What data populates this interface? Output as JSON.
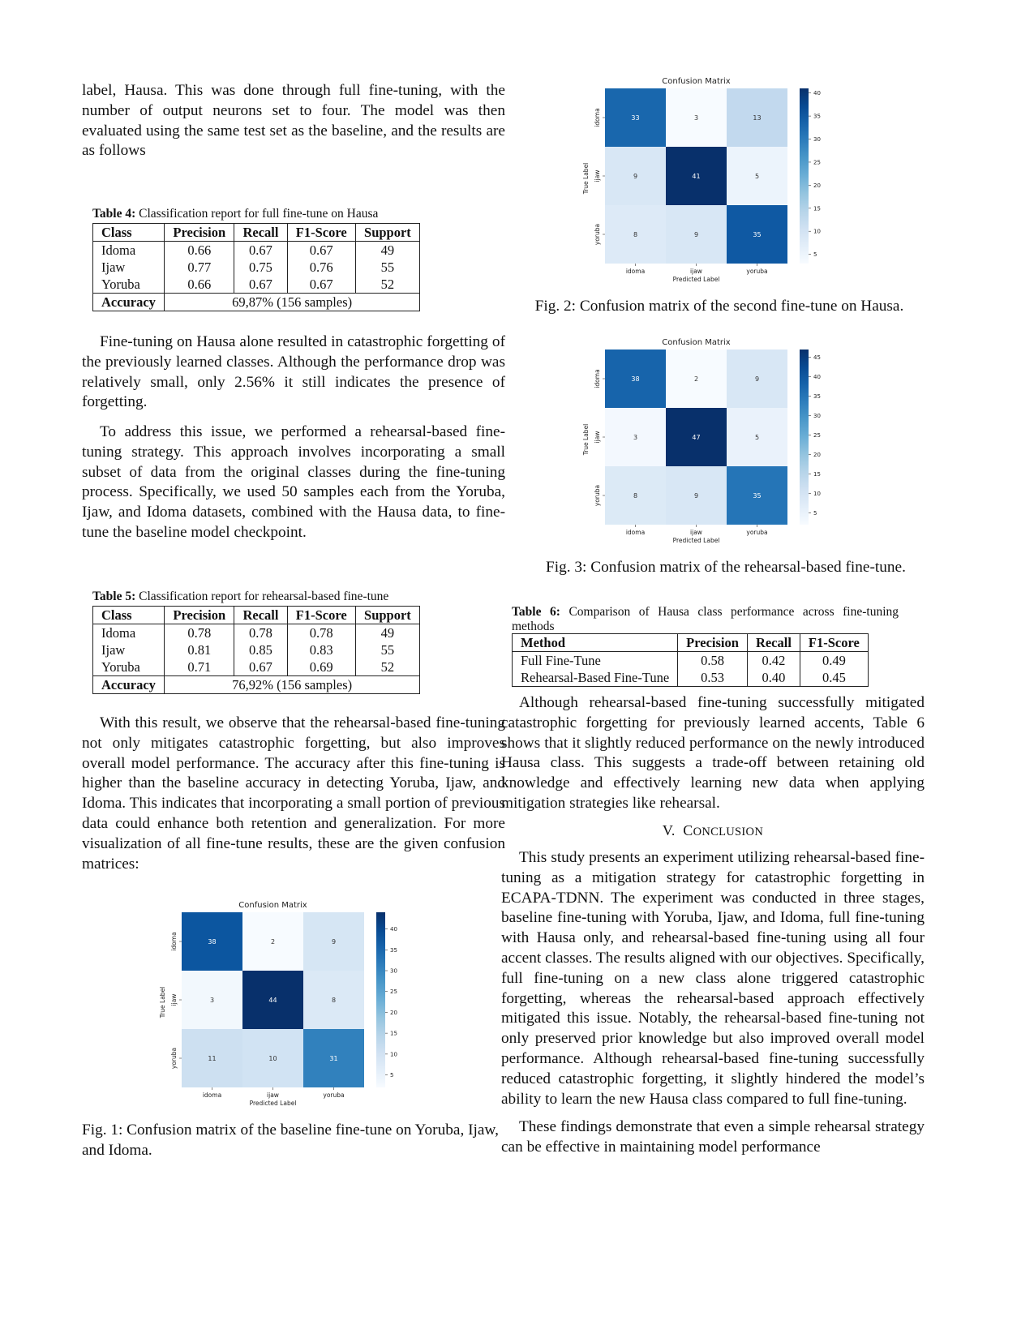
{
  "left": {
    "para1": "label, Hausa. This was done through full fine-tuning, with the number of output neurons set to four. The model was then evaluated using the same test set as the baseline, and the results are as follows",
    "table4": {
      "label": "Table 4:",
      "caption": "Classification report for full fine-tune on Hausa",
      "headers": [
        "Class",
        "Precision",
        "Recall",
        "F1-Score",
        "Support"
      ],
      "rows": [
        [
          "Idoma",
          "0.66",
          "0.67",
          "0.67",
          "49"
        ],
        [
          "Ijaw",
          "0.77",
          "0.75",
          "0.76",
          "55"
        ],
        [
          "Yoruba",
          "0.66",
          "0.67",
          "0.67",
          "52"
        ]
      ],
      "accuracy_label": "Accuracy",
      "accuracy_value": "69,87% (156 samples)"
    },
    "para2": "Fine-tuning on Hausa alone resulted in catastrophic forgetting of the previously learned classes. Although the performance drop was relatively small, only 2.56% it still indicates the presence of forgetting.",
    "para3": "To address this issue, we performed a rehearsal-based fine-tuning strategy. This approach involves incorporating a small subset of data from the original classes during the fine-tuning process. Specifically, we used 50 samples each from the Yoruba, Ijaw, and Idoma datasets, combined with the Hausa data, to fine-tune the baseline model checkpoint.",
    "table5": {
      "label": "Table 5:",
      "caption": "Classification report for rehearsal-based fine-tune",
      "headers": [
        "Class",
        "Precision",
        "Recall",
        "F1-Score",
        "Support"
      ],
      "rows": [
        [
          "Idoma",
          "0.78",
          "0.78",
          "0.78",
          "49"
        ],
        [
          "Ijaw",
          "0.81",
          "0.85",
          "0.83",
          "55"
        ],
        [
          "Yoruba",
          "0.71",
          "0.67",
          "0.69",
          "52"
        ]
      ],
      "accuracy_label": "Accuracy",
      "accuracy_value": "76,92% (156 samples)"
    },
    "para4": "With this result, we observe that the rehearsal-based fine-tuning not only mitigates catastrophic forgetting, but also improves overall model performance. The accuracy after this fine-tuning is higher than the baseline accuracy in detecting Yoruba, Ijaw, and Idoma. This indicates that incorporating a small portion of previous data could enhance both retention and generalization. For more visualization of all fine-tune results, these are the given confusion matrices:",
    "fig1_caption": "Fig. 1: Confusion matrix of the baseline fine-tune on Yoruba, Ijaw, and Idoma."
  },
  "right": {
    "fig2_caption": "Fig. 2: Confusion matrix of the second fine-tune on Hausa.",
    "fig3_caption": "Fig. 3: Confusion matrix of the rehearsal-based fine-tune.",
    "table6": {
      "label": "Table 6:",
      "caption": "Comparison of Hausa class performance across fine-tuning methods",
      "headers": [
        "Method",
        "Precision",
        "Recall",
        "F1-Score"
      ],
      "rows": [
        [
          "Full Fine-Tune",
          "0.58",
          "0.42",
          "0.49"
        ],
        [
          "Rehearsal-Based Fine-Tune",
          "0.53",
          "0.40",
          "0.45"
        ]
      ]
    },
    "para5": "Although rehearsal-based fine-tuning successfully mitigated catastrophic forgetting for previously learned accents, Table 6 shows that it slightly reduced performance on the newly introduced Hausa class. This suggests a trade-off between retaining old knowledge and effectively learning new data when applying mitigation strategies like rehearsal.",
    "section_number": "V.",
    "section_title_first": "C",
    "section_title_rest": "ONCLUSION",
    "para6": "This study presents an experiment utilizing rehearsal-based fine-tuning as a mitigation strategy for catastrophic forgetting in ECAPA-TDNN. The experiment was conducted in three stages, baseline fine-tuning with Yoruba, Ijaw, and Idoma, full fine-tuning with Hausa only, and rehearsal-based fine-tuning using all four accent classes. The results aligned with our objectives. Specifically, full fine-tuning on a new class alone triggered catastrophic forgetting, whereas the rehearsal-based approach effectively mitigated this issue. Notably, the rehearsal-based fine-tuning not only preserved prior knowledge but also improved overall model performance. Although rehearsal-based fine-tuning successfully reduced catastrophic forgetting, it slightly hindered the model’s ability to learn the new Hausa class compared to full fine-tuning.",
    "para7": "These findings demonstrate that even a simple rehearsal strategy can be effective in maintaining model performance"
  },
  "chart_data": [
    {
      "type": "heatmap",
      "id": "fig1",
      "title": "Confusion Matrix",
      "xlabel": "Predicted Label",
      "ylabel": "True Label",
      "x_categories": [
        "idoma",
        "ijaw",
        "yoruba"
      ],
      "y_categories": [
        "idoma",
        "ijaw",
        "yoruba"
      ],
      "values": [
        [
          38,
          2,
          9
        ],
        [
          3,
          44,
          8
        ],
        [
          11,
          10,
          31
        ]
      ],
      "colorbar_ticks": [
        5,
        10,
        15,
        20,
        25,
        30,
        35,
        40
      ],
      "vmin": 2,
      "vmax": 44,
      "colormap": "Blues"
    },
    {
      "type": "heatmap",
      "id": "fig2",
      "title": "Confusion Matrix",
      "xlabel": "Predicted Label",
      "ylabel": "True Label",
      "x_categories": [
        "idoma",
        "ijaw",
        "yoruba"
      ],
      "y_categories": [
        "idoma",
        "ijaw",
        "yoruba"
      ],
      "values": [
        [
          33,
          3,
          13
        ],
        [
          9,
          41,
          5
        ],
        [
          8,
          9,
          35
        ]
      ],
      "colorbar_ticks": [
        5,
        10,
        15,
        20,
        25,
        30,
        35,
        40
      ],
      "vmin": 3,
      "vmax": 41,
      "colormap": "Blues"
    },
    {
      "type": "heatmap",
      "id": "fig3",
      "title": "Confusion Matrix",
      "xlabel": "Predicted Label",
      "ylabel": "True Label",
      "x_categories": [
        "idoma",
        "ijaw",
        "yoruba"
      ],
      "y_categories": [
        "idoma",
        "ijaw",
        "yoruba"
      ],
      "values": [
        [
          38,
          2,
          9
        ],
        [
          3,
          47,
          5
        ],
        [
          8,
          9,
          35
        ]
      ],
      "colorbar_ticks": [
        5,
        10,
        15,
        20,
        25,
        30,
        35,
        40,
        45
      ],
      "vmin": 2,
      "vmax": 47,
      "colormap": "Blues"
    }
  ]
}
